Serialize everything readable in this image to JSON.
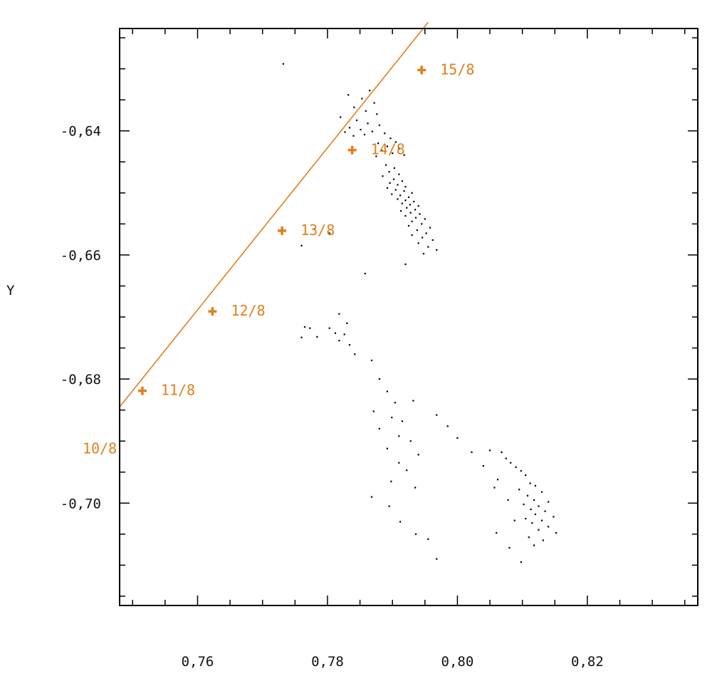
{
  "chart_data": {
    "type": "scatter",
    "title": "",
    "xlabel": "",
    "ylabel": "Y",
    "xlim": [
      0.748,
      0.837
    ],
    "ylim": [
      -0.7165,
      -0.6235
    ],
    "x_ticks": [
      0.76,
      0.78,
      0.8,
      0.82
    ],
    "x_tick_labels": [
      "0,76",
      "0,78",
      "0,80",
      "0,82"
    ],
    "y_ticks": [
      -0.64,
      -0.66,
      -0.68,
      -0.7
    ],
    "y_tick_labels": [
      "-0,64",
      "-0,66",
      "-0,68",
      "-0,70"
    ],
    "colors": {
      "track": "#e07f1a",
      "points": "#000000",
      "axes": "#000000"
    },
    "track": {
      "name": "",
      "line_start": [
        0.748,
        -0.6845
      ],
      "line_end": [
        0.7955,
        -0.6225
      ],
      "markers": [
        {
          "label": "11/8",
          "x": 0.7515,
          "y": -0.6819
        },
        {
          "label": "12/8",
          "x": 0.7623,
          "y": -0.6691
        },
        {
          "label": "13/8",
          "x": 0.773,
          "y": -0.6561
        },
        {
          "label": "14/8",
          "x": 0.7838,
          "y": -0.6431
        },
        {
          "label": "15/8",
          "x": 0.7945,
          "y": -0.6302
        }
      ],
      "offscale_label": {
        "label": "10/8",
        "x": 0.742,
        "y": -0.6912
      }
    },
    "points": [
      [
        0.7732,
        -0.6292
      ],
      [
        0.7865,
        -0.6335
      ],
      [
        0.7832,
        -0.6342
      ],
      [
        0.7853,
        -0.6348
      ],
      [
        0.7872,
        -0.6355
      ],
      [
        0.7841,
        -0.6362
      ],
      [
        0.7859,
        -0.6368
      ],
      [
        0.7876,
        -0.6373
      ],
      [
        0.782,
        -0.6378
      ],
      [
        0.7845,
        -0.6383
      ],
      [
        0.7862,
        -0.6388
      ],
      [
        0.788,
        -0.6391
      ],
      [
        0.7834,
        -0.6395
      ],
      [
        0.7851,
        -0.6398
      ],
      [
        0.7869,
        -0.6401
      ],
      [
        0.7827,
        -0.6402
      ],
      [
        0.7888,
        -0.6404
      ],
      [
        0.7857,
        -0.6406
      ],
      [
        0.784,
        -0.6408
      ],
      [
        0.7897,
        -0.6412
      ],
      [
        0.7905,
        -0.6418
      ],
      [
        0.7878,
        -0.642
      ],
      [
        0.7892,
        -0.6425
      ],
      [
        0.791,
        -0.6428
      ],
      [
        0.7884,
        -0.6432
      ],
      [
        0.79,
        -0.6436
      ],
      [
        0.7918,
        -0.6439
      ],
      [
        0.7875,
        -0.6441
      ],
      [
        0.789,
        -0.6455
      ],
      [
        0.7903,
        -0.646
      ],
      [
        0.7895,
        -0.6466
      ],
      [
        0.791,
        -0.647
      ],
      [
        0.7885,
        -0.6473
      ],
      [
        0.7902,
        -0.6478
      ],
      [
        0.7915,
        -0.6481
      ],
      [
        0.7896,
        -0.6484
      ],
      [
        0.7908,
        -0.6487
      ],
      [
        0.792,
        -0.649
      ],
      [
        0.7892,
        -0.6492
      ],
      [
        0.7905,
        -0.6495
      ],
      [
        0.7918,
        -0.6497
      ],
      [
        0.793,
        -0.65
      ],
      [
        0.7899,
        -0.6502
      ],
      [
        0.7912,
        -0.6504
      ],
      [
        0.7925,
        -0.6507
      ],
      [
        0.7908,
        -0.651
      ],
      [
        0.792,
        -0.6512
      ],
      [
        0.7933,
        -0.6514
      ],
      [
        0.7915,
        -0.6517
      ],
      [
        0.7927,
        -0.6519
      ],
      [
        0.794,
        -0.6521
      ],
      [
        0.7922,
        -0.6524
      ],
      [
        0.7935,
        -0.6527
      ],
      [
        0.7913,
        -0.6529
      ],
      [
        0.7928,
        -0.6532
      ],
      [
        0.7942,
        -0.6534
      ],
      [
        0.792,
        -0.6537
      ],
      [
        0.7936,
        -0.654
      ],
      [
        0.795,
        -0.6542
      ],
      [
        0.793,
        -0.6546
      ],
      [
        0.7945,
        -0.655
      ],
      [
        0.7925,
        -0.6553
      ],
      [
        0.7958,
        -0.6556
      ],
      [
        0.7938,
        -0.656
      ],
      [
        0.7952,
        -0.6565
      ],
      [
        0.793,
        -0.6568
      ],
      [
        0.7946,
        -0.6572
      ],
      [
        0.7962,
        -0.6576
      ],
      [
        0.794,
        -0.6581
      ],
      [
        0.7955,
        -0.6587
      ],
      [
        0.7968,
        -0.6592
      ],
      [
        0.7948,
        -0.6598
      ],
      [
        0.778,
        -0.6558
      ],
      [
        0.7803,
        -0.6565
      ],
      [
        0.776,
        -0.6585
      ],
      [
        0.792,
        -0.6615
      ],
      [
        0.7858,
        -0.663
      ],
      [
        0.7818,
        -0.6695
      ],
      [
        0.783,
        -0.671
      ],
      [
        0.7826,
        -0.6728
      ],
      [
        0.7834,
        -0.6745
      ],
      [
        0.7842,
        -0.676
      ],
      [
        0.7765,
        -0.6716
      ],
      [
        0.7773,
        -0.6718
      ],
      [
        0.7803,
        -0.6718
      ],
      [
        0.7812,
        -0.6726
      ],
      [
        0.776,
        -0.6733
      ],
      [
        0.7784,
        -0.6732
      ],
      [
        0.7818,
        -0.6738
      ],
      [
        0.7868,
        -0.677
      ],
      [
        0.788,
        -0.68
      ],
      [
        0.7892,
        -0.682
      ],
      [
        0.7904,
        -0.6838
      ],
      [
        0.7871,
        -0.6852
      ],
      [
        0.7899,
        -0.6862
      ],
      [
        0.7915,
        -0.6868
      ],
      [
        0.788,
        -0.688
      ],
      [
        0.791,
        -0.6892
      ],
      [
        0.7928,
        -0.69
      ],
      [
        0.7892,
        -0.6912
      ],
      [
        0.794,
        -0.6922
      ],
      [
        0.791,
        -0.6935
      ],
      [
        0.7922,
        -0.6947
      ],
      [
        0.7898,
        -0.6965
      ],
      [
        0.7935,
        -0.6975
      ],
      [
        0.7868,
        -0.699
      ],
      [
        0.7895,
        -0.7005
      ],
      [
        0.7912,
        -0.703
      ],
      [
        0.7936,
        -0.705
      ],
      [
        0.7955,
        -0.7058
      ],
      [
        0.7968,
        -0.709
      ],
      [
        0.805,
        -0.6915
      ],
      [
        0.8068,
        -0.6918
      ],
      [
        0.8075,
        -0.6928
      ],
      [
        0.8082,
        -0.6935
      ],
      [
        0.809,
        -0.6942
      ],
      [
        0.8098,
        -0.6948
      ],
      [
        0.8105,
        -0.6955
      ],
      [
        0.8062,
        -0.6962
      ],
      [
        0.8112,
        -0.6968
      ],
      [
        0.812,
        -0.6972
      ],
      [
        0.8095,
        -0.6978
      ],
      [
        0.813,
        -0.6982
      ],
      [
        0.8108,
        -0.6988
      ],
      [
        0.8118,
        -0.6995
      ],
      [
        0.814,
        -0.6998
      ],
      [
        0.8102,
        -0.7002
      ],
      [
        0.8125,
        -0.7005
      ],
      [
        0.8113,
        -0.701
      ],
      [
        0.8135,
        -0.7013
      ],
      [
        0.812,
        -0.7018
      ],
      [
        0.8148,
        -0.7022
      ],
      [
        0.8105,
        -0.7025
      ],
      [
        0.813,
        -0.7028
      ],
      [
        0.8115,
        -0.7032
      ],
      [
        0.814,
        -0.7038
      ],
      [
        0.8125,
        -0.7043
      ],
      [
        0.8152,
        -0.7048
      ],
      [
        0.811,
        -0.7055
      ],
      [
        0.8132,
        -0.706
      ],
      [
        0.8118,
        -0.7068
      ],
      [
        0.7932,
        -0.6835
      ],
      [
        0.7968,
        -0.6858
      ],
      [
        0.7985,
        -0.6876
      ],
      [
        0.8,
        -0.6895
      ],
      [
        0.8022,
        -0.6918
      ],
      [
        0.804,
        -0.694
      ],
      [
        0.8057,
        -0.6975
      ],
      [
        0.8078,
        -0.6995
      ],
      [
        0.8088,
        -0.7028
      ],
      [
        0.806,
        -0.7048
      ],
      [
        0.808,
        -0.7072
      ],
      [
        0.8098,
        -0.7095
      ]
    ]
  }
}
